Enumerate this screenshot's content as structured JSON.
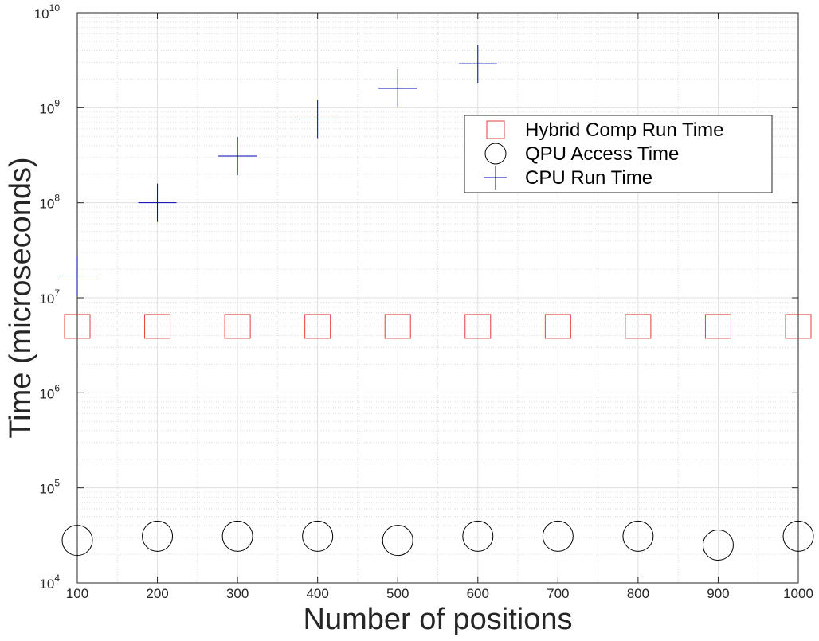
{
  "chart_data": {
    "type": "scatter",
    "title": "",
    "xlabel": "Number of positions",
    "ylabel": "Time (microseconds)",
    "xlim": [
      100,
      1000
    ],
    "ylim": [
      10000,
      10000000000
    ],
    "y_scale": "log",
    "grid": true,
    "minor_grid": true,
    "legend_position": "top-right",
    "x_ticks": [
      "100",
      "200",
      "300",
      "400",
      "500",
      "600",
      "700",
      "800",
      "900",
      "1000"
    ],
    "y_ticks": [
      {
        "base": "10",
        "exp": "4"
      },
      {
        "base": "10",
        "exp": "5"
      },
      {
        "base": "10",
        "exp": "6"
      },
      {
        "base": "10",
        "exp": "7"
      },
      {
        "base": "10",
        "exp": "8"
      },
      {
        "base": "10",
        "exp": "9"
      },
      {
        "base": "10",
        "exp": "10"
      }
    ],
    "series": [
      {
        "name": "Hybrid Comp Run Time",
        "marker": "square",
        "color": "#e0403a",
        "x": [
          100,
          200,
          300,
          400,
          500,
          600,
          700,
          800,
          900,
          1000
        ],
        "y": [
          5000000,
          5000000,
          5000000,
          5000000,
          5000000,
          5000000,
          5000000,
          5000000,
          5000000,
          5000000
        ]
      },
      {
        "name": "QPU Access Time",
        "marker": "circle",
        "color": "#000000",
        "x": [
          100,
          200,
          300,
          400,
          500,
          600,
          700,
          800,
          900,
          1000
        ],
        "y": [
          28000,
          31000,
          31000,
          31000,
          28000,
          31000,
          31000,
          31000,
          25000,
          31000
        ]
      },
      {
        "name": "CPU Run Time",
        "marker": "plus",
        "color": "#0000b0",
        "x": [
          100,
          200,
          300,
          400,
          500,
          600
        ],
        "y": [
          17000000,
          100000000,
          310000000,
          760000000,
          1600000000,
          2900000000
        ]
      }
    ]
  }
}
